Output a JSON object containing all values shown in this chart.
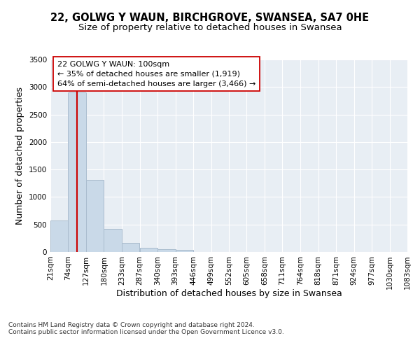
{
  "title_line1": "22, GOLWG Y WAUN, BIRCHGROVE, SWANSEA, SA7 0HE",
  "title_line2": "Size of property relative to detached houses in Swansea",
  "xlabel": "Distribution of detached houses by size in Swansea",
  "ylabel": "Number of detached properties",
  "footnote": "Contains HM Land Registry data © Crown copyright and database right 2024.\nContains public sector information licensed under the Open Government Licence v3.0.",
  "bin_edges": [
    21,
    74,
    127,
    180,
    233,
    287,
    340,
    393,
    446,
    499,
    552,
    605,
    658,
    711,
    764,
    818,
    871,
    924,
    977,
    1030,
    1083
  ],
  "bar_heights": [
    570,
    2900,
    1310,
    420,
    170,
    80,
    50,
    40,
    0,
    0,
    0,
    0,
    0,
    0,
    0,
    0,
    0,
    0,
    0,
    0
  ],
  "bar_color": "#c9d9e8",
  "bar_edgecolor": "#aabcce",
  "property_sqm": 100,
  "red_line_color": "#cc0000",
  "annotation_text": "22 GOLWG Y WAUN: 100sqm\n← 35% of detached houses are smaller (1,919)\n64% of semi-detached houses are larger (3,466) →",
  "annotation_box_edgecolor": "#cc0000",
  "annotation_box_facecolor": "#ffffff",
  "ylim": [
    0,
    3500
  ],
  "yticks": [
    0,
    500,
    1000,
    1500,
    2000,
    2500,
    3000,
    3500
  ],
  "background_color": "#ffffff",
  "plot_bg_color": "#e8eef4",
  "title_fontsize": 10.5,
  "subtitle_fontsize": 9.5,
  "axis_label_fontsize": 9,
  "tick_fontsize": 7.5,
  "annotation_fontsize": 8,
  "footnote_fontsize": 6.5
}
